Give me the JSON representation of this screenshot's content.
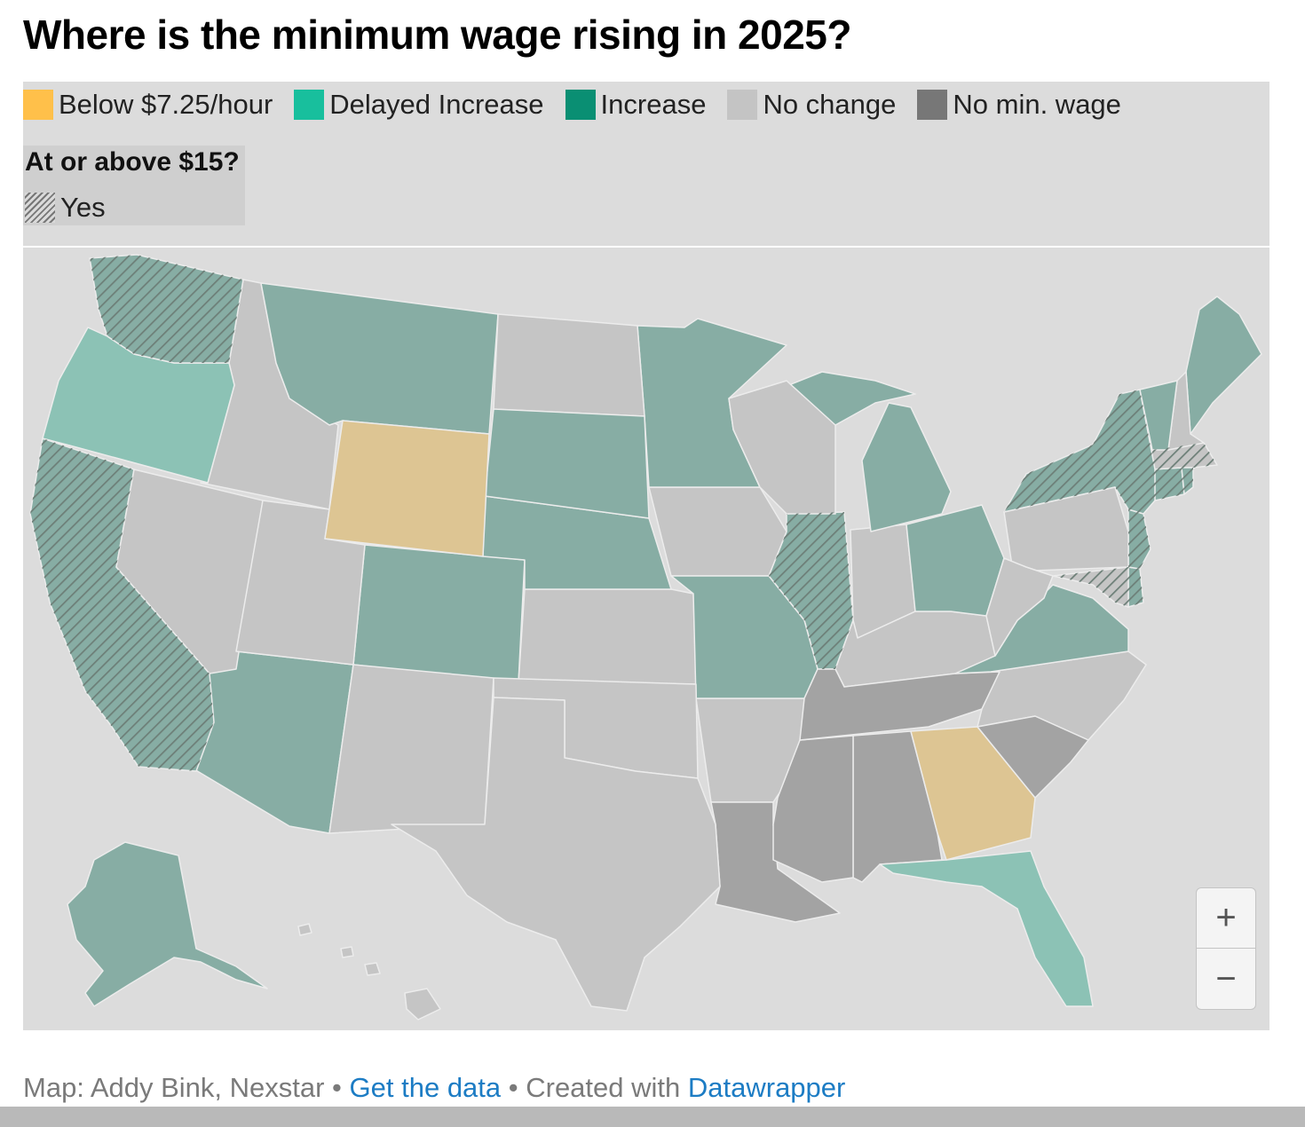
{
  "title": "Where is the minimum wage rising in 2025?",
  "legend": {
    "items": [
      {
        "label": "Below $7.25/hour",
        "color": "#ffc04a"
      },
      {
        "label": "Delayed Increase",
        "color": "#18bf9d"
      },
      {
        "label": "Increase",
        "color": "#0a8f73"
      },
      {
        "label": "No change",
        "color": "#c4c4c4"
      },
      {
        "label": "No min. wage",
        "color": "#777777"
      }
    ],
    "subtitle": "At or above $15?",
    "hatch_label": "Yes"
  },
  "map_colors": {
    "below_725": "#ddc593",
    "delayed_increase": "#8cc2b5",
    "increase": "#87ada4",
    "no_change": "#c5c5c5",
    "no_min_wage": "#a3a3a3",
    "hatch": "#6d7f78"
  },
  "states": [
    {
      "name": "Alabama",
      "category": "no_min_wage",
      "at_or_above_15": false
    },
    {
      "name": "Alaska",
      "category": "increase",
      "at_or_above_15": false
    },
    {
      "name": "Arizona",
      "category": "increase",
      "at_or_above_15": false
    },
    {
      "name": "Arkansas",
      "category": "no_change",
      "at_or_above_15": false
    },
    {
      "name": "California",
      "category": "increase",
      "at_or_above_15": true
    },
    {
      "name": "Colorado",
      "category": "increase",
      "at_or_above_15": false
    },
    {
      "name": "Connecticut",
      "category": "increase",
      "at_or_above_15": true
    },
    {
      "name": "Delaware",
      "category": "increase",
      "at_or_above_15": true
    },
    {
      "name": "Florida",
      "category": "delayed_increase",
      "at_or_above_15": false
    },
    {
      "name": "Georgia",
      "category": "below_725",
      "at_or_above_15": false
    },
    {
      "name": "Hawaii",
      "category": "no_change",
      "at_or_above_15": false
    },
    {
      "name": "Idaho",
      "category": "no_change",
      "at_or_above_15": false
    },
    {
      "name": "Illinois",
      "category": "increase",
      "at_or_above_15": true
    },
    {
      "name": "Indiana",
      "category": "no_change",
      "at_or_above_15": false
    },
    {
      "name": "Iowa",
      "category": "no_change",
      "at_or_above_15": false
    },
    {
      "name": "Kansas",
      "category": "no_change",
      "at_or_above_15": false
    },
    {
      "name": "Kentucky",
      "category": "no_change",
      "at_or_above_15": false
    },
    {
      "name": "Louisiana",
      "category": "no_min_wage",
      "at_or_above_15": false
    },
    {
      "name": "Maine",
      "category": "increase",
      "at_or_above_15": false
    },
    {
      "name": "Maryland",
      "category": "no_change",
      "at_or_above_15": true
    },
    {
      "name": "Massachusetts",
      "category": "no_change",
      "at_or_above_15": true
    },
    {
      "name": "Michigan",
      "category": "increase",
      "at_or_above_15": false
    },
    {
      "name": "Minnesota",
      "category": "increase",
      "at_or_above_15": false
    },
    {
      "name": "Mississippi",
      "category": "no_min_wage",
      "at_or_above_15": false
    },
    {
      "name": "Missouri",
      "category": "increase",
      "at_or_above_15": false
    },
    {
      "name": "Montana",
      "category": "increase",
      "at_or_above_15": false
    },
    {
      "name": "Nebraska",
      "category": "increase",
      "at_or_above_15": false
    },
    {
      "name": "Nevada",
      "category": "no_change",
      "at_or_above_15": false
    },
    {
      "name": "New Hampshire",
      "category": "no_change",
      "at_or_above_15": false
    },
    {
      "name": "New Jersey",
      "category": "increase",
      "at_or_above_15": true
    },
    {
      "name": "New Mexico",
      "category": "no_change",
      "at_or_above_15": false
    },
    {
      "name": "New York",
      "category": "increase",
      "at_or_above_15": true
    },
    {
      "name": "North Carolina",
      "category": "no_change",
      "at_or_above_15": false
    },
    {
      "name": "North Dakota",
      "category": "no_change",
      "at_or_above_15": false
    },
    {
      "name": "Ohio",
      "category": "increase",
      "at_or_above_15": false
    },
    {
      "name": "Oklahoma",
      "category": "no_change",
      "at_or_above_15": false
    },
    {
      "name": "Oregon",
      "category": "delayed_increase",
      "at_or_above_15": false
    },
    {
      "name": "Pennsylvania",
      "category": "no_change",
      "at_or_above_15": false
    },
    {
      "name": "Rhode Island",
      "category": "increase",
      "at_or_above_15": true
    },
    {
      "name": "South Carolina",
      "category": "no_min_wage",
      "at_or_above_15": false
    },
    {
      "name": "South Dakota",
      "category": "increase",
      "at_or_above_15": false
    },
    {
      "name": "Tennessee",
      "category": "no_min_wage",
      "at_or_above_15": false
    },
    {
      "name": "Texas",
      "category": "no_change",
      "at_or_above_15": false
    },
    {
      "name": "Utah",
      "category": "no_change",
      "at_or_above_15": false
    },
    {
      "name": "Vermont",
      "category": "increase",
      "at_or_above_15": false
    },
    {
      "name": "Virginia",
      "category": "increase",
      "at_or_above_15": false
    },
    {
      "name": "Washington",
      "category": "increase",
      "at_or_above_15": true
    },
    {
      "name": "West Virginia",
      "category": "no_change",
      "at_or_above_15": false
    },
    {
      "name": "Wisconsin",
      "category": "no_change",
      "at_or_above_15": false
    },
    {
      "name": "Wyoming",
      "category": "below_725",
      "at_or_above_15": false
    }
  ],
  "zoom": {
    "in_label": "+",
    "out_label": "−"
  },
  "footer": {
    "prefix": "Map: Addy Bink, Nexstar",
    "sep1": " • ",
    "link1": "Get the data",
    "sep2": " • Created with ",
    "link2": "Datawrapper"
  }
}
